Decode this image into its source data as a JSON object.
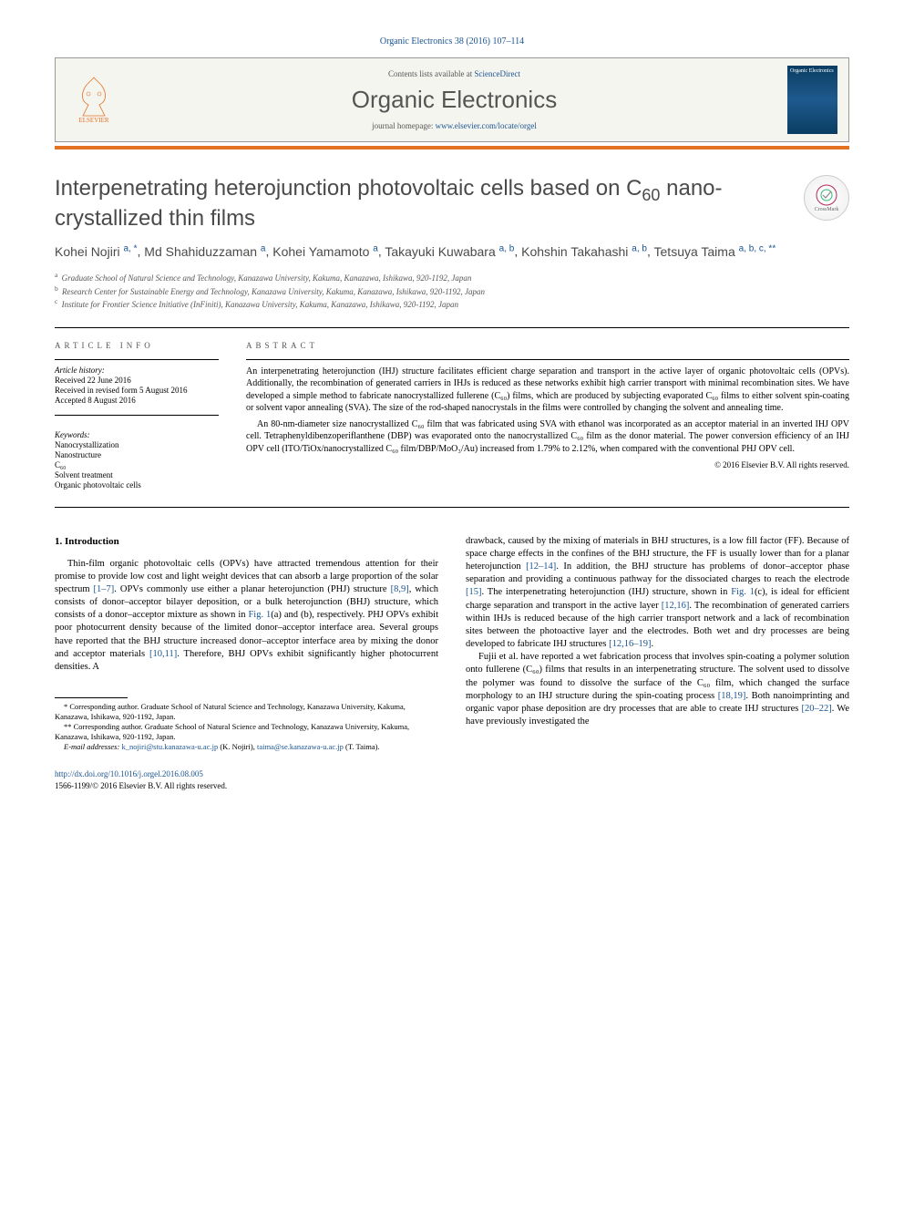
{
  "citation": "Organic Electronics 38 (2016) 107–114",
  "masthead": {
    "contents_prefix": "Contents lists available at ",
    "contents_link": "ScienceDirect",
    "journal_name": "Organic Electronics",
    "homepage_prefix": "journal homepage: ",
    "homepage_url": "www.elsevier.com/locate/orgel",
    "publisher_label": "ELSEVIER",
    "cover_label": "Organic Electronics"
  },
  "crossmark": "CrossMark",
  "title_part1": "Interpenetrating heterojunction photovoltaic cells based on C",
  "title_sub": "60",
  "title_part2": " nano-crystallized thin films",
  "authors": [
    {
      "name": "Kohei Nojiri",
      "sup": "a, *"
    },
    {
      "name": "Md Shahiduzzaman",
      "sup": "a"
    },
    {
      "name": "Kohei Yamamoto",
      "sup": "a"
    },
    {
      "name": "Takayuki Kuwabara",
      "sup": "a, b"
    },
    {
      "name": "Kohshin Takahashi",
      "sup": "a, b"
    },
    {
      "name": "Tetsuya Taima",
      "sup": "a, b, c, **"
    }
  ],
  "affiliations": [
    {
      "sup": "a",
      "text": "Graduate School of Natural Science and Technology, Kanazawa University, Kakuma, Kanazawa, Ishikawa, 920-1192, Japan"
    },
    {
      "sup": "b",
      "text": "Research Center for Sustainable Energy and Technology, Kanazawa University, Kakuma, Kanazawa, Ishikawa, 920-1192, Japan"
    },
    {
      "sup": "c",
      "text": "Institute for Frontier Science Initiative (InFiniti), Kanazawa University, Kakuma, Kanazawa, Ishikawa, 920-1192, Japan"
    }
  ],
  "info_heading": "ARTICLE INFO",
  "abstract_heading": "ABSTRACT",
  "history": {
    "label": "Article history:",
    "received": "Received 22 June 2016",
    "revised": "Received in revised form 5 August 2016",
    "accepted": "Accepted 8 August 2016"
  },
  "keywords_label": "Keywords:",
  "keywords": [
    "Nanocrystallization",
    "Nanostructure",
    "C₆₀",
    "Solvent treatment",
    "Organic photovoltaic cells"
  ],
  "abstract": {
    "p1": "An interpenetrating heterojunction (IHJ) structure facilitates efficient charge separation and transport in the active layer of organic photovoltaic cells (OPVs). Additionally, the recombination of generated carriers in IHJs is reduced as these networks exhibit high carrier transport with minimal recombination sites. We have developed a simple method to fabricate nanocrystallized fullerene (C₆₀) films, which are produced by subjecting evaporated C₆₀ films to either solvent spin-coating or solvent vapor annealing (SVA). The size of the rod-shaped nanocrystals in the films were controlled by changing the solvent and annealing time.",
    "p2": "An 80-nm-diameter size nanocrystallized C₆₀ film that was fabricated using SVA with ethanol was incorporated as an acceptor material in an inverted IHJ OPV cell. Tetraphenyldibenzoperiflanthene (DBP) was evaporated onto the nanocrystallized C₆₀ film as the donor material. The power conversion efficiency of an IHJ OPV cell (ITO/TiOx/nanocrystallized C₆₀ film/DBP/MoO₃/Au) increased from 1.79% to 2.12%, when compared with the conventional PHJ OPV cell.",
    "copyright": "© 2016 Elsevier B.V. All rights reserved."
  },
  "section1_heading": "1. Introduction",
  "body": {
    "col1": "Thin-film organic photovoltaic cells (OPVs) have attracted tremendous attention for their promise to provide low cost and light weight devices that can absorb a large proportion of the solar spectrum [1–7]. OPVs commonly use either a planar heterojunction (PHJ) structure [8,9], which consists of donor–acceptor bilayer deposition, or a bulk heterojunction (BHJ) structure, which consists of a donor–acceptor mixture as shown in Fig. 1(a) and (b), respectively. PHJ OPVs exhibit poor photocurrent density because of the limited donor–acceptor interface area. Several groups have reported that the BHJ structure increased donor–acceptor interface area by mixing the donor and acceptor materials [10,11]. Therefore, BHJ OPVs exhibit significantly higher photocurrent densities. A",
    "col2p1": "drawback, caused by the mixing of materials in BHJ structures, is a low fill factor (FF). Because of space charge effects in the confines of the BHJ structure, the FF is usually lower than for a planar heterojunction [12–14]. In addition, the BHJ structure has problems of donor–acceptor phase separation and providing a continuous pathway for the dissociated charges to reach the electrode [15]. The interpenetrating heterojunction (IHJ) structure, shown in Fig. 1(c), is ideal for efficient charge separation and transport in the active layer [12,16]. The recombination of generated carriers within IHJs is reduced because of the high carrier transport network and a lack of recombination sites between the photoactive layer and the electrodes. Both wet and dry processes are being developed to fabricate IHJ structures [12,16–19].",
    "col2p2": "Fujii et al. have reported a wet fabrication process that involves spin-coating a polymer solution onto fullerene (C₆₀) films that results in an interpenetrating structure. The solvent used to dissolve the polymer was found to dissolve the surface of the C₆₀ film, which changed the surface morphology to an IHJ structure during the spin-coating process [18,19]. Both nanoimprinting and organic vapor phase deposition are dry processes that are able to create IHJ structures [20–22]. We have previously investigated the"
  },
  "ref_links": {
    "r1_7": "[1–7]",
    "r8_9": "[8,9]",
    "fig1": "Fig. 1",
    "r10_11": "[10,11]",
    "r12_14": "[12–14]",
    "r15": "[15]",
    "r12_16": "[12,16]",
    "r12_16_19": "[12,16–19]",
    "r18_19": "[18,19]",
    "r20_22": "[20–22]"
  },
  "footnotes": {
    "c1": "* Corresponding author. Graduate School of Natural Science and Technology, Kanazawa University, Kakuma, Kanazawa, Ishikawa, 920-1192, Japan.",
    "c2": "** Corresponding author. Graduate School of Natural Science and Technology, Kanazawa University, Kakuma, Kanazawa, Ishikawa, 920-1192, Japan.",
    "email_label": "E-mail addresses:",
    "email1": "k_nojiri@stu.kanazawa-u.ac.jp",
    "email1_who": "(K. Nojiri),",
    "email2": "taima@se.kanazawa-u.ac.jp",
    "email2_who": "(T. Taima)."
  },
  "bottom": {
    "doi": "http://dx.doi.org/10.1016/j.orgel.2016.08.005",
    "issn": "1566-1199/© 2016 Elsevier B.V. All rights reserved."
  }
}
